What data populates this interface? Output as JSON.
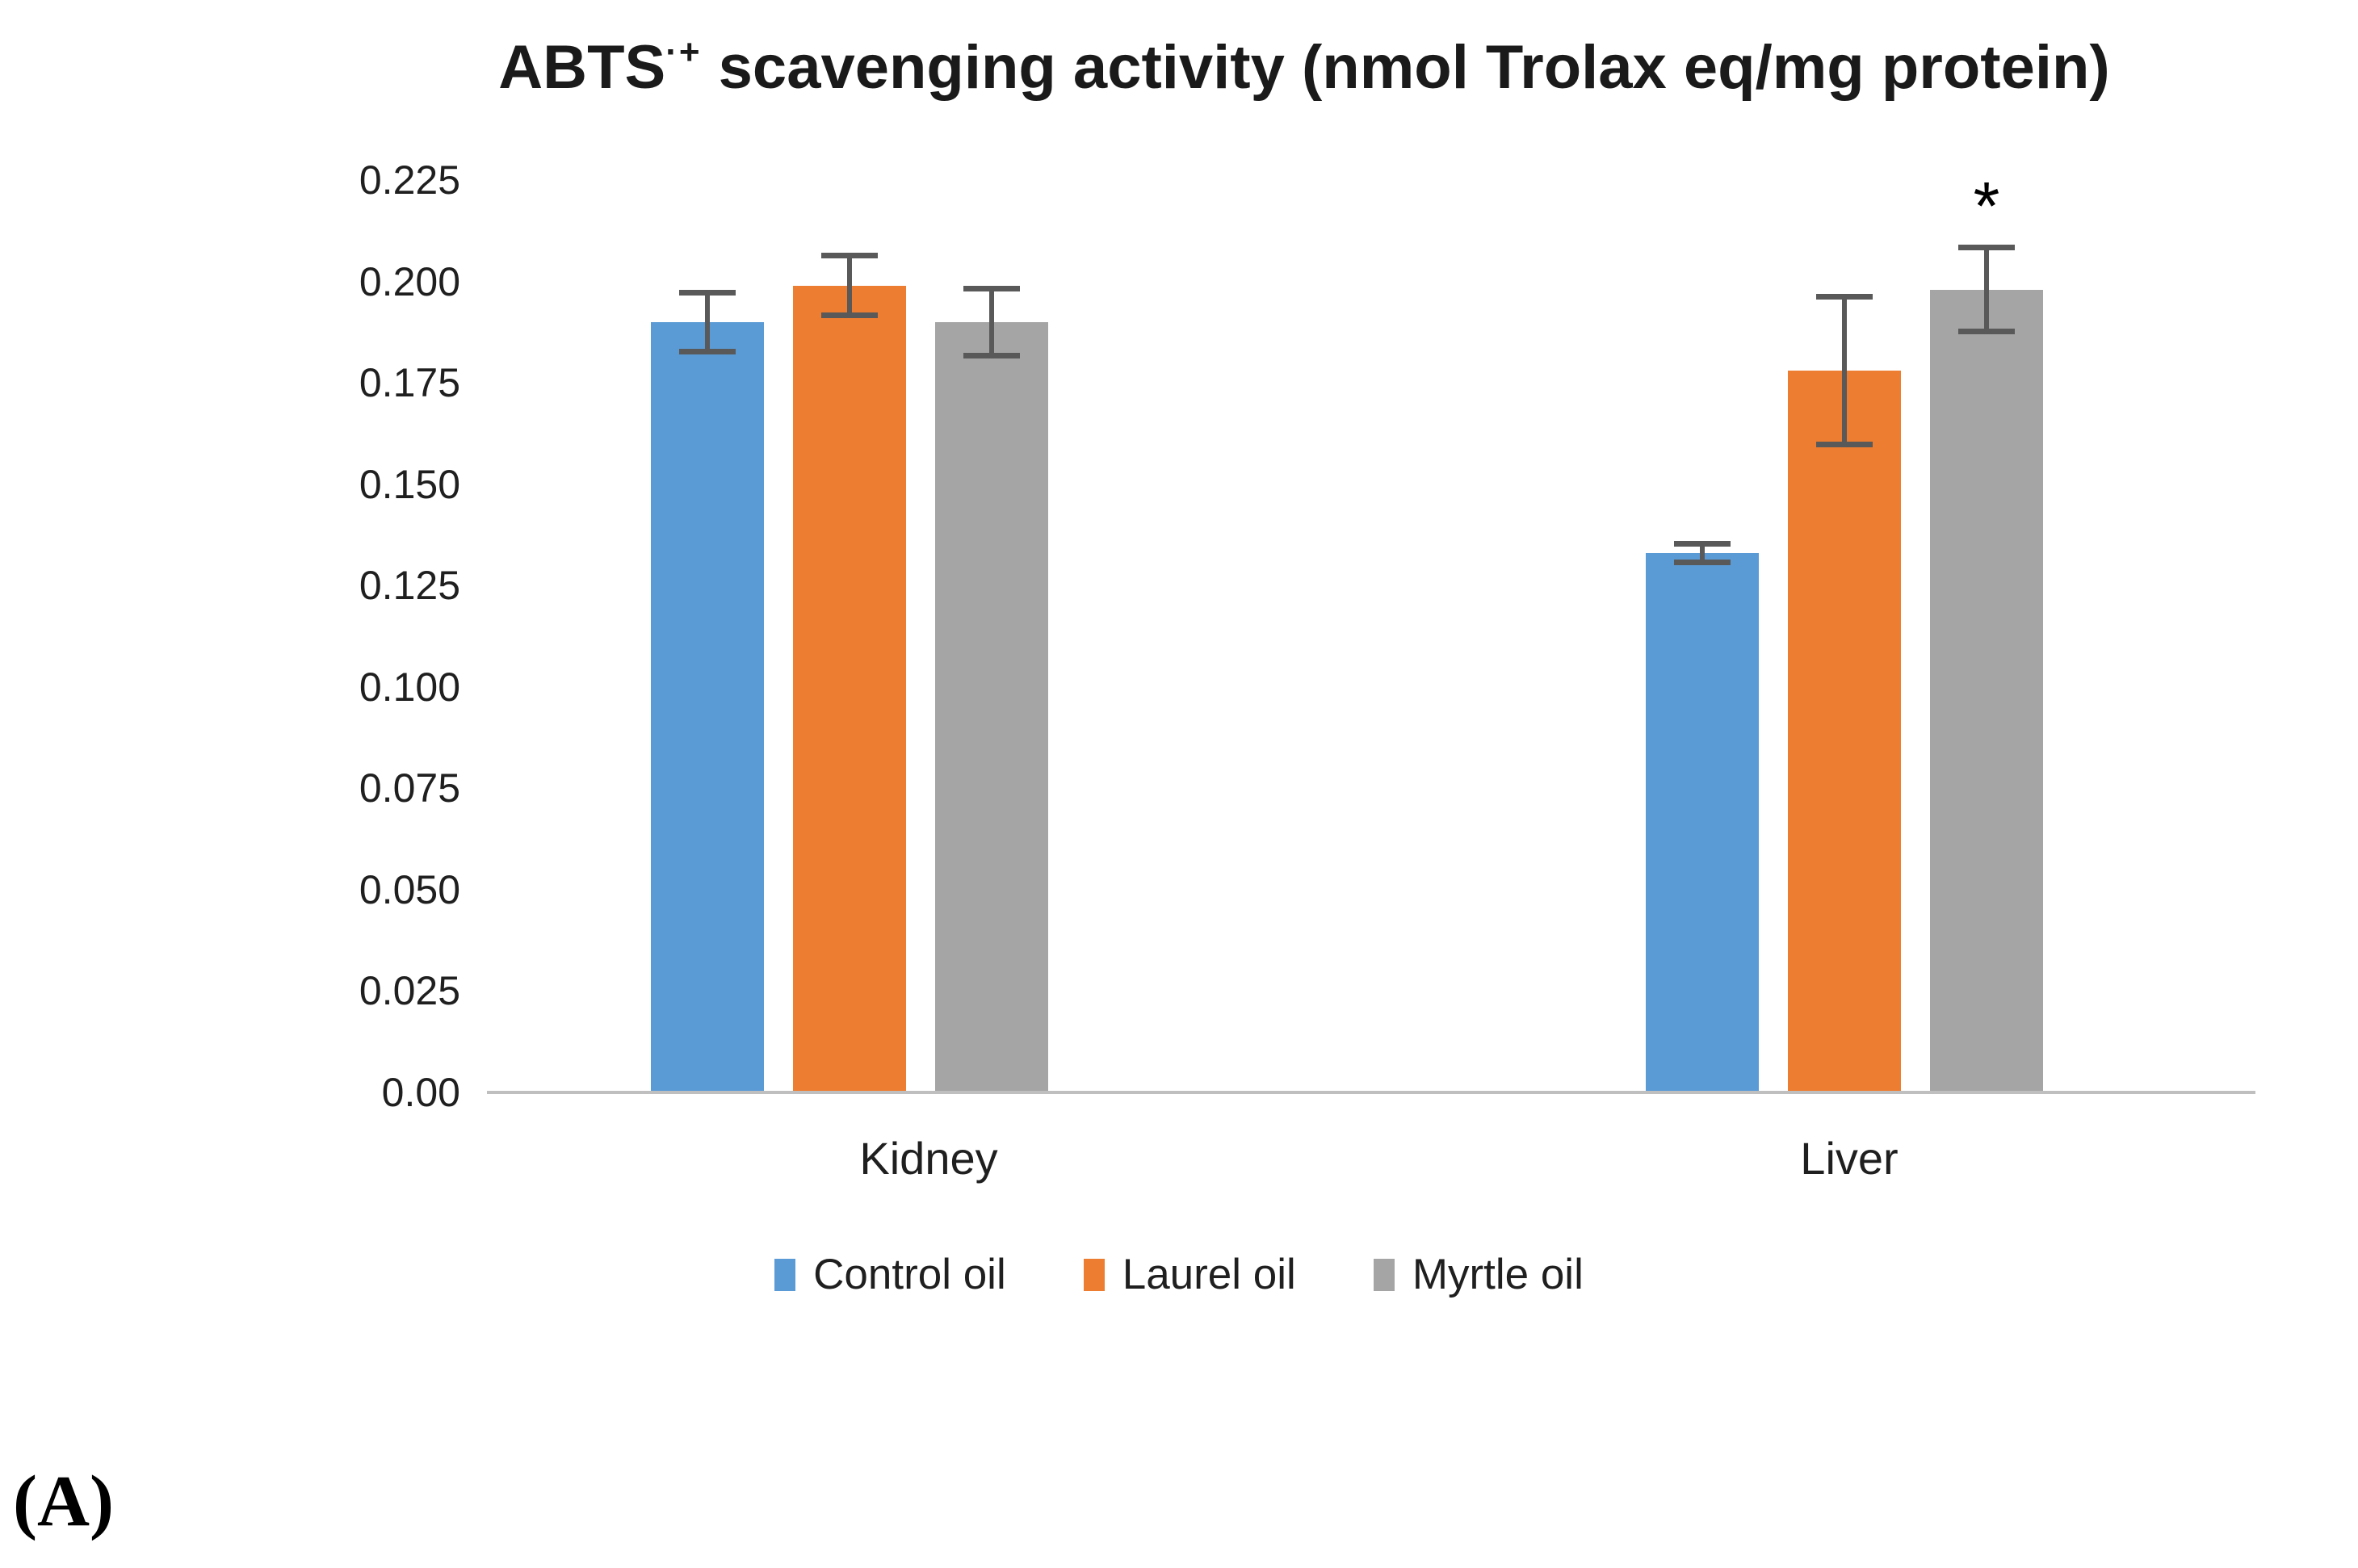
{
  "figure": {
    "panel_label": "(A)"
  },
  "chart_data": {
    "type": "bar",
    "title": {
      "main": "ABTS",
      "superscript": "·+",
      "rest": " scavenging activity (nmol Trolax eq/mg protein)"
    },
    "categories": [
      "Kidney",
      "Liver"
    ],
    "series": [
      {
        "name": "Control oil",
        "color": "#5B9BD5",
        "values": [
          0.19,
          0.133
        ],
        "errors": [
          0.008,
          0.003
        ]
      },
      {
        "name": "Laurel oil",
        "color": "#ED7D31",
        "values": [
          0.199,
          0.178
        ],
        "errors": [
          0.008,
          0.019
        ]
      },
      {
        "name": "Myrtle oil",
        "color": "#A5A5A5",
        "values": [
          0.19,
          0.198
        ],
        "errors": [
          0.009,
          0.011
        ]
      }
    ],
    "y_ticks": [
      "0.225",
      "0.200",
      "0.175",
      "0.150",
      "0.125",
      "0.100",
      "0.075",
      "0.050",
      "0.025",
      "0.00"
    ],
    "ylim": [
      0,
      0.225
    ],
    "xlabel": "",
    "ylabel": "",
    "grid": false,
    "legend_position": "bottom",
    "annotations": [
      {
        "text": "*",
        "category_index": 1,
        "series_index": 2
      }
    ],
    "error_bar_color": "#595959",
    "axis_line_color": "#BFBFBF",
    "background_color": "#FFFFFF"
  }
}
